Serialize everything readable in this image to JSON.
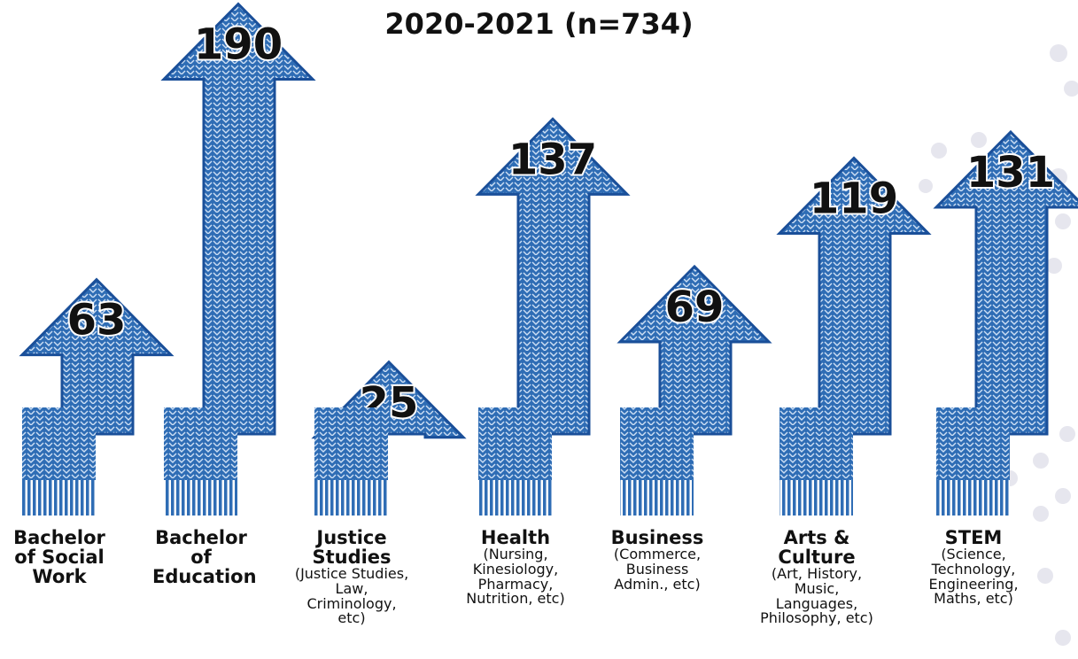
{
  "chart_data": {
    "type": "arrow",
    "title": "2020-2021 (n=734)",
    "categories": [
      "Bachelor of Social Work",
      "Bachelor of Education",
      "Justice Studies",
      "Health",
      "Business",
      "Arts & Culture",
      "STEM"
    ],
    "details": [
      null,
      null,
      "(Justice Studies, Law, Criminology, etc)",
      "(Nursing, Kinesiology, Pharmacy, Nutrition, etc)",
      "(Commerce, Business Admin., etc)",
      "(Art, History, Music, Languages, Philosophy, etc)",
      "(Science, Technology, Engineering, Maths, etc)"
    ],
    "values": [
      63,
      190,
      25,
      137,
      69,
      119,
      131
    ],
    "color": "#2f6db5"
  }
}
